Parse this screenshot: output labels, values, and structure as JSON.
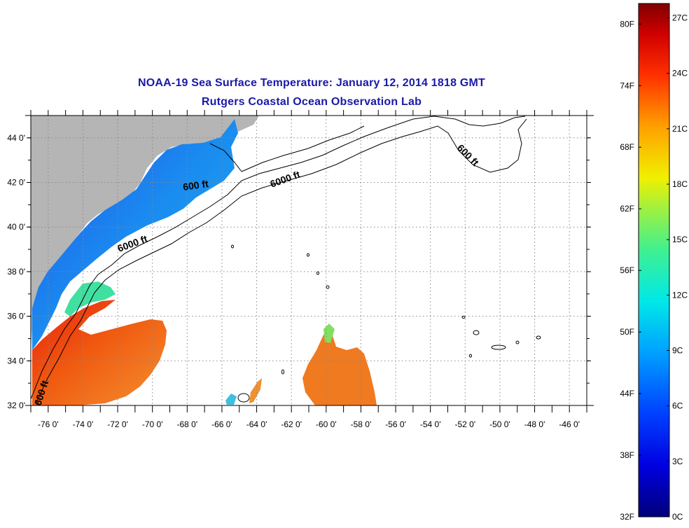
{
  "title": "NOAA-19 Sea Surface Temperature:  January 12, 2014 1818 GMT",
  "subtitle": "Rutgers Coastal Ocean Observation Lab",
  "lat_labels": [
    "44 0'",
    "42 0'",
    "40 0'",
    "38 0'",
    "36 0'",
    "34 0'",
    "32 0'"
  ],
  "lon_labels": [
    "-76 0'",
    "-74 0'",
    "-72 0'",
    "-70 0'",
    "-68 0'",
    "-66 0'",
    "-64 0'",
    "-62 0'",
    "-60 0'",
    "-58 0'",
    "-56 0'",
    "-54 0'",
    "-52 0'",
    "-50 0'",
    "-48 0'",
    "-46 0'"
  ],
  "contour_labels": {
    "c600_north": "600 ft",
    "c600_east": "600 ft",
    "c6000_north": "6000 ft",
    "c6000_mid": "6000 ft",
    "c600_south": "600 ft"
  },
  "colorbar": {
    "fahrenheit": [
      "80F",
      "74F",
      "68F",
      "62F",
      "56F",
      "50F",
      "44F",
      "38F",
      "32F"
    ],
    "celsius": [
      "27C",
      "24C",
      "21C",
      "18C",
      "15C",
      "12C",
      "9C",
      "6C",
      "3C",
      "0C"
    ]
  },
  "colors": {
    "title": "#1a1aa8",
    "land": "#b5b5b5",
    "cold": "#1850e0",
    "warm": "#f04018"
  }
}
